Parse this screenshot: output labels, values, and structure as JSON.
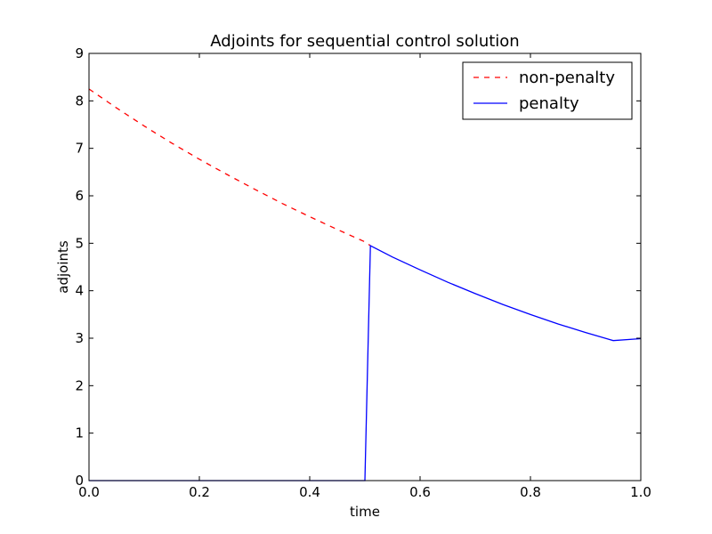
{
  "chart_data": {
    "type": "line",
    "title": "Adjoints for sequential control solution",
    "xlabel": "time",
    "ylabel": "adjoints",
    "xlim": [
      0.0,
      1.0
    ],
    "ylim": [
      0,
      9
    ],
    "xticks": [
      "0.0",
      "0.2",
      "0.4",
      "0.6",
      "0.8",
      "1.0"
    ],
    "yticks": [
      "0",
      "1",
      "2",
      "3",
      "4",
      "5",
      "6",
      "7",
      "8",
      "9"
    ],
    "grid": false,
    "legend_position": "top-right",
    "series": [
      {
        "name": "non-penalty",
        "style": "dashed",
        "color": "#ff0000",
        "x": [
          0.0,
          0.05,
          0.1,
          0.15,
          0.2,
          0.25,
          0.3,
          0.35,
          0.4,
          0.45,
          0.5,
          0.51
        ],
        "y": [
          8.25,
          7.85,
          7.47,
          7.11,
          6.77,
          6.45,
          6.14,
          5.84,
          5.56,
          5.29,
          5.03,
          4.95
        ]
      },
      {
        "name": "penalty",
        "style": "solid",
        "color": "#0000ff",
        "x": [
          0.0,
          0.5,
          0.51,
          0.55,
          0.6,
          0.65,
          0.7,
          0.75,
          0.8,
          0.85,
          0.9,
          0.95,
          1.0
        ],
        "y": [
          0.0,
          0.0,
          4.95,
          4.71,
          4.44,
          4.18,
          3.94,
          3.71,
          3.5,
          3.3,
          3.12,
          2.95,
          2.99
        ]
      }
    ]
  }
}
